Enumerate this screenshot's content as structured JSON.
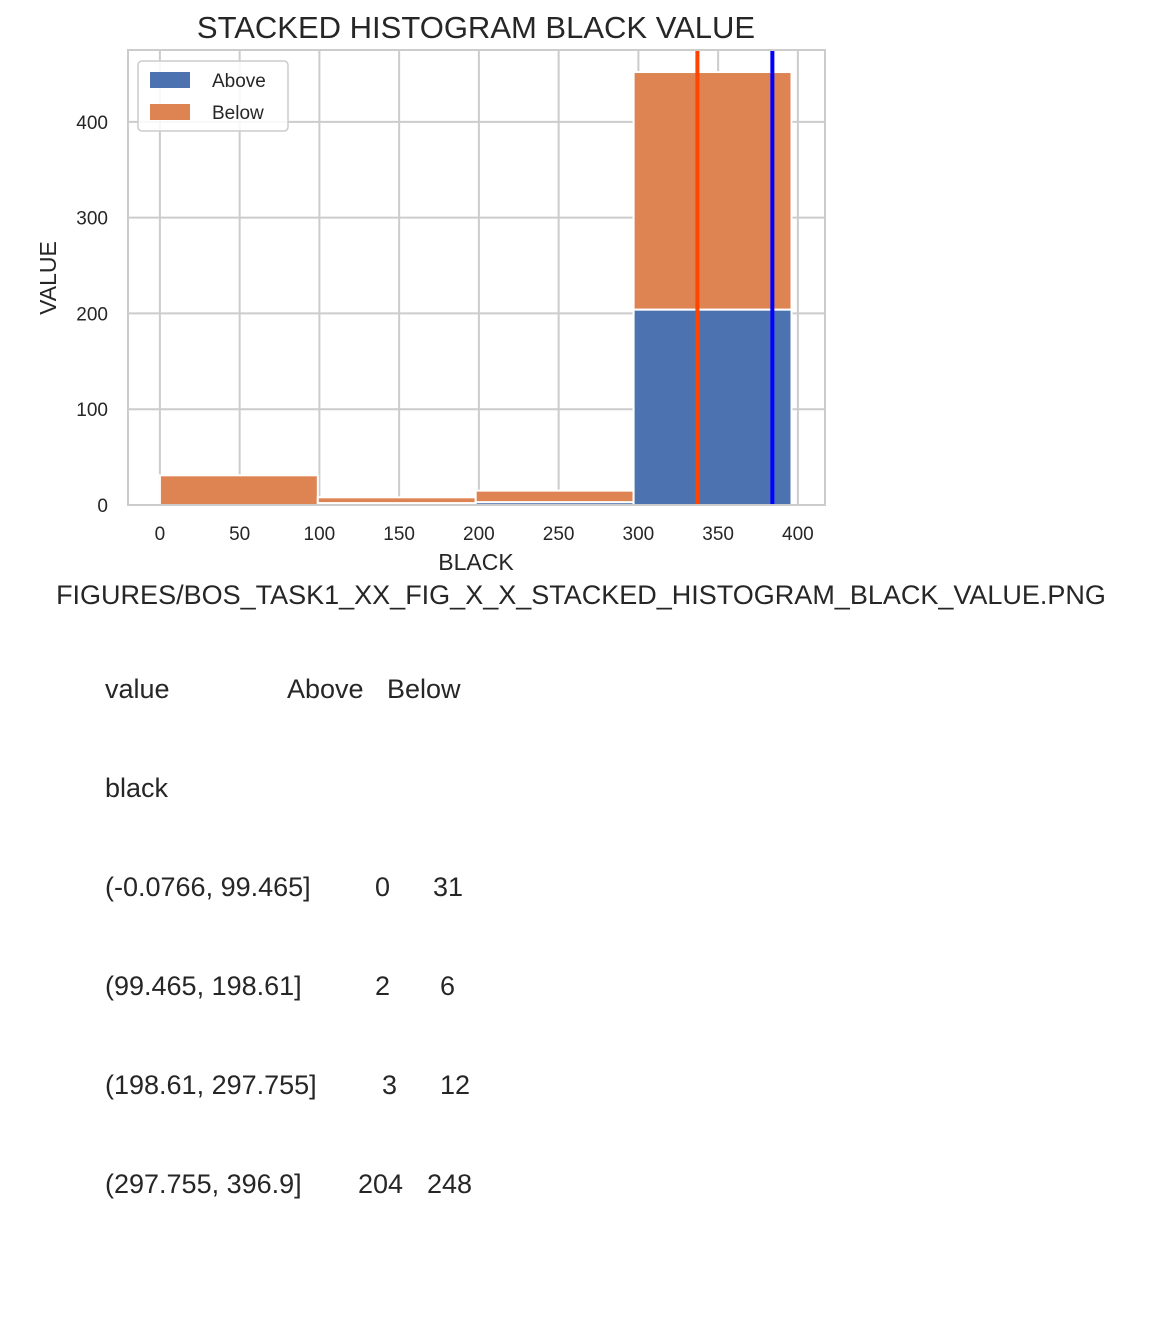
{
  "chart_data": {
    "type": "bar",
    "stacked": true,
    "title": "STACKED HISTOGRAM BLACK VALUE",
    "xlabel": "BLACK",
    "ylabel": "VALUE",
    "xlim": [
      -20,
      417
    ],
    "ylim": [
      0,
      475
    ],
    "xticks": [
      0,
      50,
      100,
      150,
      200,
      250,
      300,
      350,
      400
    ],
    "yticks": [
      0,
      100,
      200,
      300,
      400
    ],
    "grid": true,
    "legend_position": "top-left",
    "bins": [
      {
        "x0": 0,
        "x1": 99
      },
      {
        "x0": 99,
        "x1": 198
      },
      {
        "x0": 198,
        "x1": 297
      },
      {
        "x0": 297,
        "x1": 396
      }
    ],
    "series": [
      {
        "name": "Above",
        "color": "#4c72b0",
        "values": [
          0,
          2,
          3,
          204
        ]
      },
      {
        "name": "Below",
        "color": "#dd8452",
        "values": [
          31,
          6,
          12,
          248
        ]
      }
    ],
    "vlines": [
      {
        "x": 337,
        "color": "#ff4500"
      },
      {
        "x": 384,
        "color": "#0000ff"
      }
    ]
  },
  "caption": "FIGURES/BOS_TASK1_XX_FIG_X_X_STACKED_HISTOGRAM_BLACK_VALUE.PNG",
  "table": {
    "header": {
      "label": "value",
      "above": "Above",
      "below": "Below"
    },
    "index_name": "black",
    "rows": [
      {
        "label": "(-0.0766, 99.465]",
        "above": "0",
        "below": "31"
      },
      {
        "label": "(99.465, 198.61]",
        "above": "2",
        "below": "6"
      },
      {
        "label": "(198.61, 297.755]",
        "above": "3",
        "below": "12"
      },
      {
        "label": "(297.755, 396.9]",
        "above": "204",
        "below": "248"
      }
    ]
  }
}
